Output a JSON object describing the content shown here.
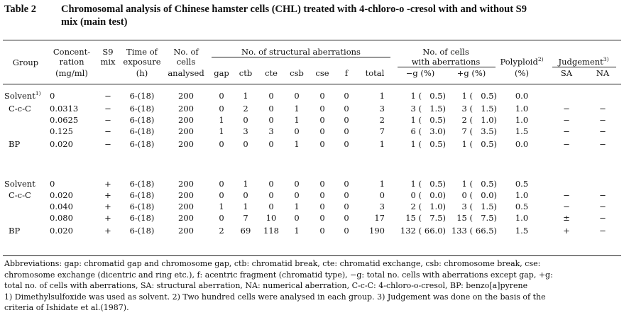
{
  "caption": {
    "number": "Table 2",
    "title_line1": "Chromosomal analysis of Chinese hamster cells (CHL) treated with 4-chloro-o -cresol with and without S9",
    "title_line2": "mix (main test)"
  },
  "headers": {
    "group": "Group",
    "conc1": "Concent-",
    "conc2": "ration",
    "conc3": "(mg/ml)",
    "s9_1": "S9",
    "s9_2": "mix",
    "time1": "Time of",
    "time2": "exposure",
    "time3": "(h)",
    "cells1": "No. of",
    "cells2": "cells",
    "cells3": "analysed",
    "struct": "No. of structural aberrations",
    "gap": "gap",
    "ctb": "ctb",
    "cte": "cte",
    "csb": "csb",
    "cse": "cse",
    "f": "f",
    "total": "total",
    "withab1": "No. of cells",
    "withab2": "with aberrations",
    "ming": "−g  (%)",
    "plusg": "+g  (%)",
    "poly1": "Polyploid",
    "poly_sup": "2)",
    "poly2": "(%)",
    "judge": "Judgement",
    "judge_sup": "3)",
    "sa": "SA",
    "na": "NA"
  },
  "rows": [
    {
      "group": "Solvent",
      "sup": "1)",
      "conc": "0",
      "s9": "−",
      "time": "6-(18)",
      "cells": "200",
      "gap": "0",
      "ctb": "1",
      "cte": "0",
      "csb": "0",
      "cse": "0",
      "f": "0",
      "total": "1",
      "mg_n": "1",
      "mg_p": "0.5",
      "pg_n": "1",
      "pg_p": "0.5",
      "poly": "0.0",
      "sa": "",
      "na": ""
    },
    {
      "group": "C-c-C",
      "sup": "",
      "conc": "0.0313",
      "s9": "−",
      "time": "6-(18)",
      "cells": "200",
      "gap": "0",
      "ctb": "2",
      "cte": "0",
      "csb": "1",
      "cse": "0",
      "f": "0",
      "total": "3",
      "mg_n": "3",
      "mg_p": "1.5",
      "pg_n": "3",
      "pg_p": "1.5",
      "poly": "1.0",
      "sa": "−",
      "na": "−"
    },
    {
      "group": "",
      "sup": "",
      "conc": "0.0625",
      "s9": "−",
      "time": "6-(18)",
      "cells": "200",
      "gap": "1",
      "ctb": "0",
      "cte": "0",
      "csb": "1",
      "cse": "0",
      "f": "0",
      "total": "2",
      "mg_n": "1",
      "mg_p": "0.5",
      "pg_n": "2",
      "pg_p": "1.0",
      "poly": "1.0",
      "sa": "−",
      "na": "−"
    },
    {
      "group": "",
      "sup": "",
      "conc": "0.125",
      "s9": "−",
      "time": "6-(18)",
      "cells": "200",
      "gap": "1",
      "ctb": "3",
      "cte": "3",
      "csb": "0",
      "cse": "0",
      "f": "0",
      "total": "7",
      "mg_n": "6",
      "mg_p": "3.0",
      "pg_n": "7",
      "pg_p": "3.5",
      "poly": "1.5",
      "sa": "−",
      "na": "−"
    },
    {
      "group": "BP",
      "sup": "",
      "conc": "0.020",
      "s9": "−",
      "time": "6-(18)",
      "cells": "200",
      "gap": "0",
      "ctb": "0",
      "cte": "0",
      "csb": "1",
      "cse": "0",
      "f": "0",
      "total": "1",
      "mg_n": "1",
      "mg_p": "0.5",
      "pg_n": "1",
      "pg_p": "0.5",
      "poly": "0.0",
      "sa": "−",
      "na": "−"
    },
    {
      "group": "Solvent",
      "sup": "",
      "conc": "0",
      "s9": "+",
      "time": "6-(18)",
      "cells": "200",
      "gap": "0",
      "ctb": "1",
      "cte": "0",
      "csb": "0",
      "cse": "0",
      "f": "0",
      "total": "1",
      "mg_n": "1",
      "mg_p": "0.5",
      "pg_n": "1",
      "pg_p": "0.5",
      "poly": "0.5",
      "sa": "",
      "na": ""
    },
    {
      "group": "C-c-C",
      "sup": "",
      "conc": "0.020",
      "s9": "+",
      "time": "6-(18)",
      "cells": "200",
      "gap": "0",
      "ctb": "0",
      "cte": "0",
      "csb": "0",
      "cse": "0",
      "f": "0",
      "total": "0",
      "mg_n": "0",
      "mg_p": "0.0",
      "pg_n": "0",
      "pg_p": "0.0",
      "poly": "1.0",
      "sa": "−",
      "na": "−"
    },
    {
      "group": "",
      "sup": "",
      "conc": "0.040",
      "s9": "+",
      "time": "6-(18)",
      "cells": "200",
      "gap": "1",
      "ctb": "1",
      "cte": "0",
      "csb": "1",
      "cse": "0",
      "f": "0",
      "total": "3",
      "mg_n": "2",
      "mg_p": "1.0",
      "pg_n": "3",
      "pg_p": "1.5",
      "poly": "0.5",
      "sa": "−",
      "na": "−"
    },
    {
      "group": "",
      "sup": "",
      "conc": "0.080",
      "s9": "+",
      "time": "6-(18)",
      "cells": "200",
      "gap": "0",
      "ctb": "7",
      "cte": "10",
      "csb": "0",
      "cse": "0",
      "f": "0",
      "total": "17",
      "mg_n": "15",
      "mg_p": "7.5",
      "pg_n": "15",
      "pg_p": "7.5",
      "poly": "1.0",
      "sa": "±",
      "na": "−"
    },
    {
      "group": "BP",
      "sup": "",
      "conc": "0.020",
      "s9": "+",
      "time": "6-(18)",
      "cells": "200",
      "gap": "2",
      "ctb": "69",
      "cte": "118",
      "csb": "1",
      "cse": "0",
      "f": "0",
      "total": "190",
      "mg_n": "132",
      "mg_p": "66.0",
      "pg_n": "133",
      "pg_p": "66.5",
      "poly": "1.5",
      "sa": "+",
      "na": "−"
    }
  ],
  "notes": [
    "Abbreviations: gap: chromatid gap and chromosome gap, ctb: chromatid break, cte: chromatid exchange, csb: chromosome break, cse:",
    "chromosome exchange (dicentric and ring etc.), f: acentric fragment (chromatid type), −g: total no. cells with aberrations except gap, +g:",
    "total no. of cells with aberrations, SA: structural aberration, NA: numerical aberration, C-c-C: 4-chloro-o-cresol, BP: benzo[a]pyrene",
    "1) Dimethylsulfoxide was used as solvent.   2) Two hundred cells were analysed in each group.   3) Judgement was done on the basis of the",
    "criteria of Ishidate et al.(1987)."
  ]
}
